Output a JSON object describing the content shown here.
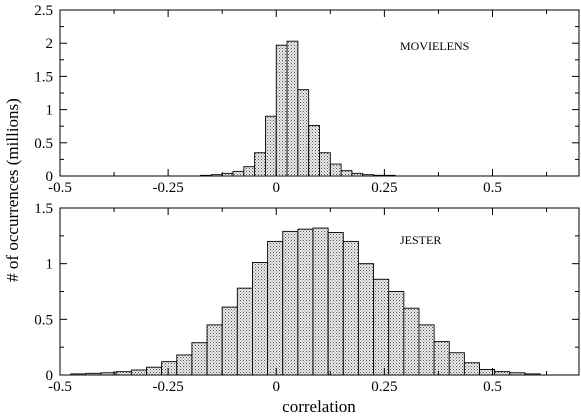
{
  "chart_data": [
    {
      "type": "bar",
      "annotation": "MOVIELENS",
      "xlim": [
        -0.5,
        0.7
      ],
      "ylim": [
        0,
        2.5
      ],
      "x_ticks": [
        -0.5,
        -0.25,
        0,
        0.25,
        0.5
      ],
      "x_tick_labels": [
        "-0.5",
        "-0.25",
        "0",
        "0.25",
        "0.5"
      ],
      "y_ticks": [
        0,
        0.5,
        1,
        1.5,
        2,
        2.5
      ],
      "y_tick_labels": [
        "0",
        "0.5",
        "1",
        "1.5",
        "2",
        "2.5"
      ],
      "bin_width": 0.025,
      "bin_left_edges": [
        -0.175,
        -0.15,
        -0.125,
        -0.1,
        -0.075,
        -0.05,
        -0.025,
        0,
        0.025,
        0.05,
        0.075,
        0.1,
        0.125,
        0.15,
        0.175,
        0.2,
        0.225,
        0.25
      ],
      "values": [
        0.01,
        0.02,
        0.04,
        0.07,
        0.14,
        0.35,
        0.9,
        1.97,
        2.03,
        1.3,
        0.76,
        0.35,
        0.18,
        0.08,
        0.04,
        0.02,
        0.01,
        0.01
      ]
    },
    {
      "type": "bar",
      "annotation": "JESTER",
      "xlim": [
        -0.5,
        0.7
      ],
      "ylim": [
        0,
        1.5
      ],
      "x_ticks": [
        -0.5,
        -0.25,
        0,
        0.25,
        0.5
      ],
      "x_tick_labels": [
        "-0.5",
        "-0.25",
        "0",
        "0.25",
        "0.5"
      ],
      "y_ticks": [
        0,
        0.5,
        1,
        1.5
      ],
      "y_tick_labels": [
        "0",
        "0.5",
        "1",
        "1.5"
      ],
      "bin_width": 0.035,
      "bin_left_edges": [
        -0.475,
        -0.44,
        -0.405,
        -0.37,
        -0.335,
        -0.3,
        -0.265,
        -0.23,
        -0.195,
        -0.16,
        -0.125,
        -0.09,
        -0.055,
        -0.02,
        0.015,
        0.05,
        0.085,
        0.12,
        0.155,
        0.19,
        0.225,
        0.26,
        0.295,
        0.33,
        0.365,
        0.4,
        0.435,
        0.47,
        0.505,
        0.54,
        0.575
      ],
      "values": [
        0.01,
        0.015,
        0.02,
        0.03,
        0.045,
        0.07,
        0.12,
        0.18,
        0.29,
        0.45,
        0.61,
        0.78,
        1.01,
        1.2,
        1.29,
        1.31,
        1.32,
        1.28,
        1.2,
        1.0,
        0.86,
        0.75,
        0.6,
        0.45,
        0.3,
        0.2,
        0.11,
        0.05,
        0.03,
        0.02,
        0.01
      ]
    }
  ],
  "shared": {
    "xlabel": "correlation",
    "ylabel": "# of occurrences (millions)"
  }
}
